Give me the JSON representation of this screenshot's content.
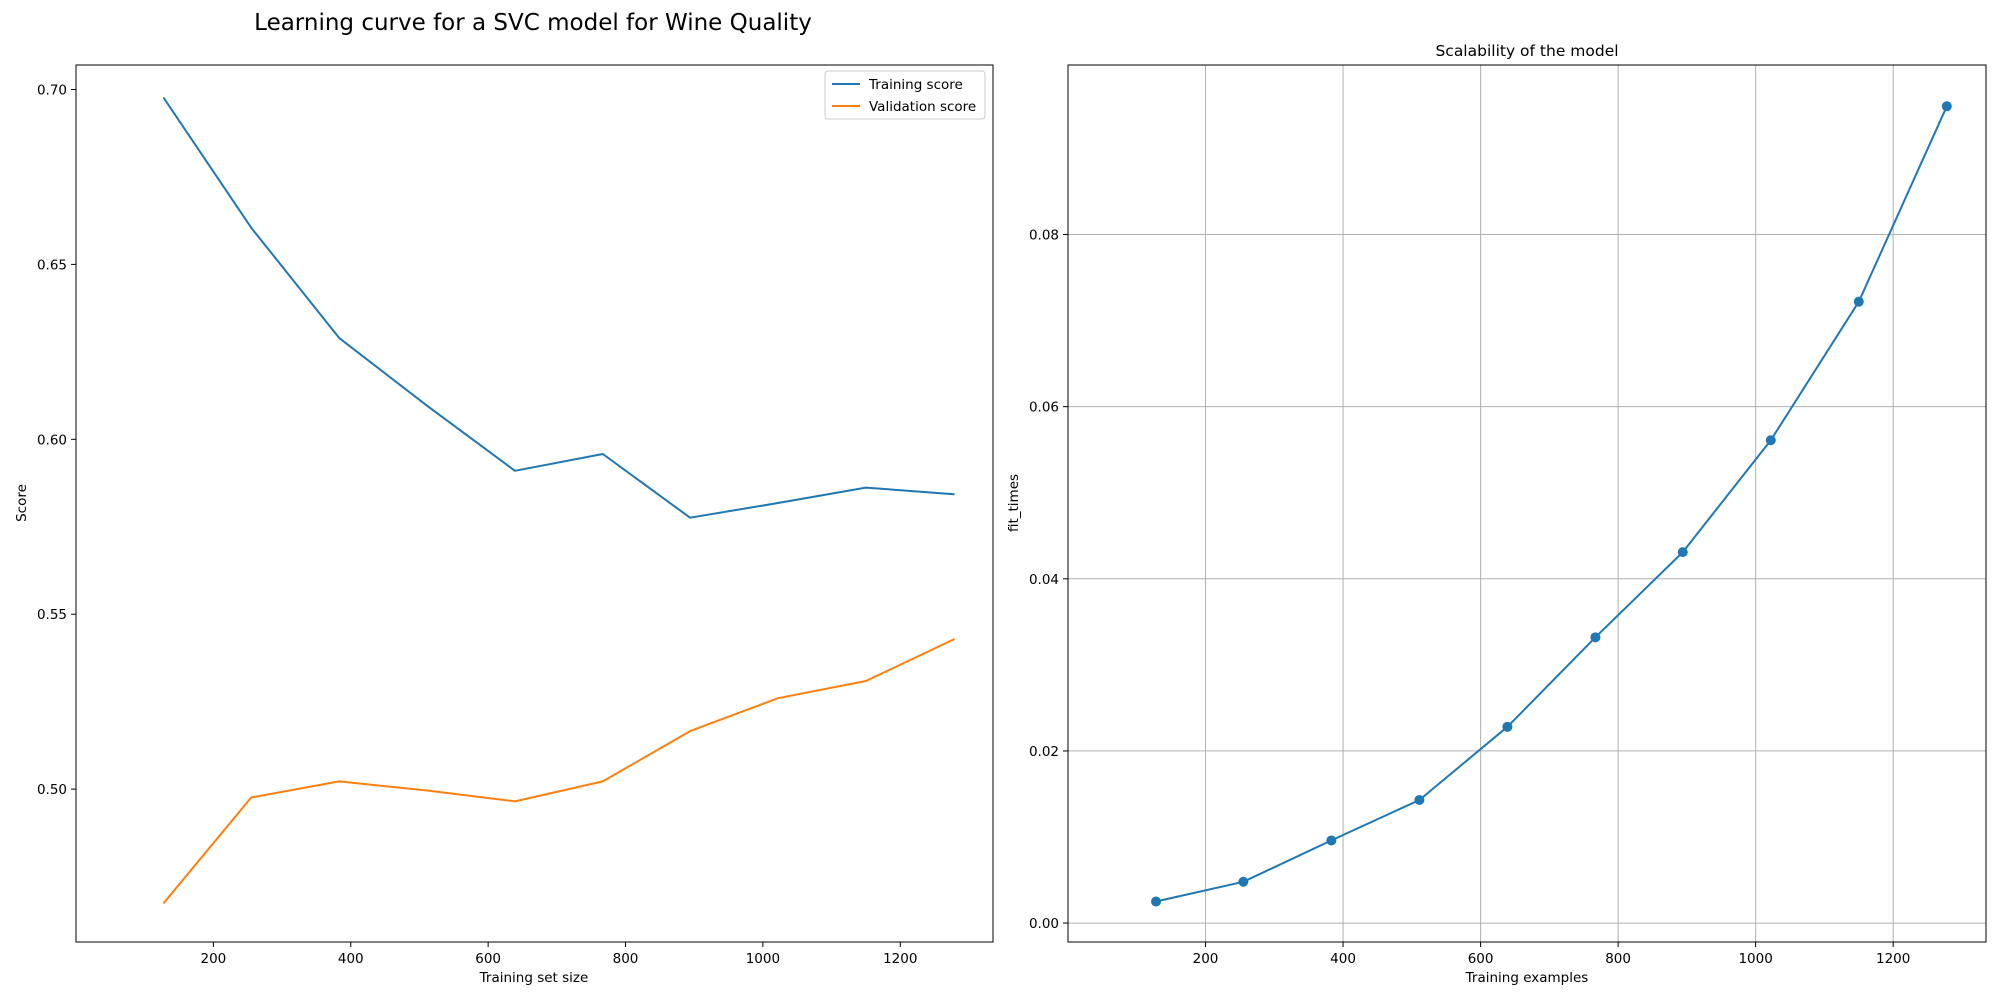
{
  "figure": {
    "suptitle": "Learning curve for a SVC model for Wine Quality"
  },
  "colors": {
    "training": "#1f77b4",
    "validation": "#ff7f0e"
  },
  "chart_data": [
    {
      "type": "line",
      "title": "",
      "xlabel": "Training set size",
      "ylabel": "Score",
      "x": [
        128,
        255,
        383,
        511,
        639,
        767,
        894,
        1022,
        1150,
        1278
      ],
      "series": [
        {
          "name": "Training score",
          "color": "#1f77b4",
          "values": [
            0.6975,
            0.6605,
            0.629,
            0.6096,
            0.591,
            0.5958,
            0.5776,
            0.5818,
            0.5862,
            0.5843
          ]
        },
        {
          "name": "Validation score",
          "color": "#ff7f0e",
          "values": [
            0.4675,
            0.4976,
            0.5022,
            0.4996,
            0.4965,
            0.5022,
            0.5166,
            0.526,
            0.5309,
            0.5428
          ]
        }
      ],
      "xlim": [
        0,
        1335
      ],
      "ylim": [
        0.4563,
        0.707
      ],
      "xticks": [
        200,
        400,
        600,
        800,
        1000,
        1200
      ],
      "xticklabels": [
        "200",
        "400",
        "600",
        "800",
        "1000",
        "1200"
      ],
      "yticks": [
        0.5,
        0.55,
        0.6,
        0.65,
        0.7
      ],
      "yticklabels": [
        "0.50",
        "0.55",
        "0.60",
        "0.65",
        "0.70"
      ],
      "grid": false,
      "legend": "top-right"
    },
    {
      "type": "line",
      "title": "Scalability of the model",
      "xlabel": "Training examples",
      "ylabel": "fit_times",
      "x": [
        128,
        255,
        383,
        511,
        639,
        767,
        894,
        1022,
        1150,
        1278
      ],
      "series": [
        {
          "color": "#1f77b4",
          "markers": true,
          "values": [
            0.0025,
            0.0048,
            0.0096,
            0.0143,
            0.0228,
            0.0332,
            0.0431,
            0.0561,
            0.0722,
            0.0949
          ]
        }
      ],
      "xlim": [
        0,
        1335
      ],
      "ylim": [
        -0.0022,
        0.0997
      ],
      "xticks": [
        200,
        400,
        600,
        800,
        1000,
        1200
      ],
      "xticklabels": [
        "200",
        "400",
        "600",
        "800",
        "1000",
        "1200"
      ],
      "yticks": [
        0.0,
        0.02,
        0.04,
        0.06,
        0.08
      ],
      "yticklabels": [
        "0.00",
        "0.02",
        "0.04",
        "0.06",
        "0.08"
      ],
      "grid": true
    }
  ]
}
